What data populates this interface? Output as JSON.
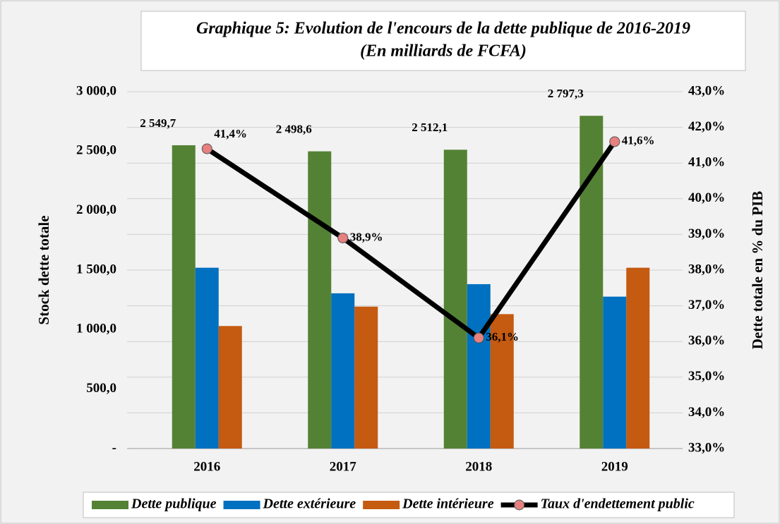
{
  "chart_data": {
    "type": "bar",
    "title": "Graphique 5: Evolution de l'encours de la dette publique de 2016-2019",
    "subtitle": "(En milliards de FCFA)",
    "y_label": "Stock dette totale",
    "y2_label": "Dette totale en % du PIB",
    "categories": [
      "2016",
      "2017",
      "2018",
      "2019"
    ],
    "series": [
      {
        "name": "Dette publique",
        "color": "#548235",
        "values": [
          2549.7,
          2498.6,
          2512.1,
          2797.3
        ],
        "value_labels": [
          "2 549,7",
          "2 498,6",
          "2 512,1",
          "2 797,3"
        ]
      },
      {
        "name": "Dette extérieure",
        "color": "#0070c0",
        "values": [
          1520,
          1305,
          1382,
          1277
        ]
      },
      {
        "name": "Dette intérieure",
        "color": "#c55a11",
        "values": [
          1030,
          1193,
          1130,
          1520
        ]
      },
      {
        "name": "Taux d'endettement public",
        "type": "line",
        "axis": "y2",
        "color": "#000000",
        "marker_color": "#e88080",
        "values": [
          41.4,
          38.9,
          36.1,
          41.6
        ],
        "value_labels": [
          "41,4%",
          "38,9%",
          "36,1%",
          "41,6%"
        ]
      }
    ],
    "ylim": [
      0,
      3000
    ],
    "yticks": [
      {
        "value": 0,
        "label": "-"
      },
      {
        "value": 500,
        "label": "500,0"
      },
      {
        "value": 1000,
        "label": "1 000,0"
      },
      {
        "value": 1500,
        "label": "1 500,0"
      },
      {
        "value": 2000,
        "label": "2 000,0"
      },
      {
        "value": 2500,
        "label": "2 500,0"
      },
      {
        "value": 3000,
        "label": "3 000,0"
      }
    ],
    "y2lim": [
      33,
      43
    ],
    "y2ticks": [
      {
        "value": 33,
        "label": "33,0%"
      },
      {
        "value": 34,
        "label": "34,0%"
      },
      {
        "value": 35,
        "label": "35,0%"
      },
      {
        "value": 36,
        "label": "36,0%"
      },
      {
        "value": 37,
        "label": "37,0%"
      },
      {
        "value": 38,
        "label": "38,0%"
      },
      {
        "value": 39,
        "label": "39,0%"
      },
      {
        "value": 40,
        "label": "40,0%"
      },
      {
        "value": 41,
        "label": "41,0%"
      },
      {
        "value": 42,
        "label": "42,0%"
      },
      {
        "value": 43,
        "label": "43,0%"
      }
    ],
    "grid": true,
    "legend": "bottom"
  }
}
